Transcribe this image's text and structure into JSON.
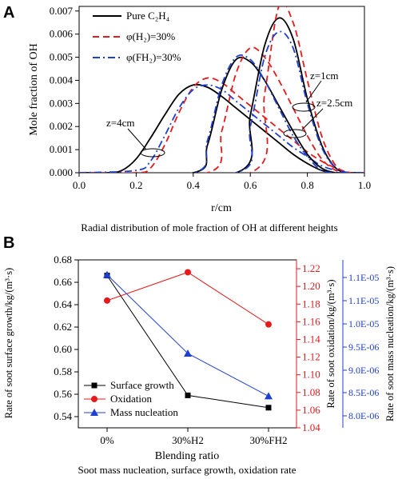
{
  "figure": {
    "panel_a": {
      "letter": "A",
      "caption": "Radial distribution of mole fraction of OH at different heights",
      "annotations": {
        "z1": "z=1cm",
        "z25": "z=2.5cm",
        "z4": "z=4cm"
      }
    },
    "panel_b": {
      "letter": "B",
      "caption": "Soot mass nucleation, surface growth, oxidation rate"
    }
  },
  "chart_data": [
    {
      "type": "line",
      "xlabel": "r/cm",
      "ylabel": "Mole fraction of OH",
      "xlim": [
        0.0,
        1.0
      ],
      "ylim": [
        0.0,
        0.0072
      ],
      "xticks": [
        "0.0",
        "0.2",
        "0.4",
        "0.6",
        "0.8",
        "1.0"
      ],
      "yticks": [
        "0.000",
        "0.001",
        "0.002",
        "0.003",
        "0.004",
        "0.005",
        "0.006",
        "0.007"
      ],
      "legend_position": "top-left",
      "legend_labels": [
        "Pure C₂H₄",
        "φ(H₂)=30%",
        "φ(FH₂)=30%"
      ],
      "series": [
        {
          "name": "Pure C2H4",
          "color": "#000000",
          "style": "solid",
          "height": "z=4cm",
          "x": [
            0.0,
            0.1,
            0.15,
            0.2,
            0.25,
            0.3,
            0.35,
            0.4,
            0.45,
            0.5,
            0.55,
            0.6,
            0.65,
            0.7,
            0.75,
            0.8,
            0.85,
            0.9,
            0.95,
            1.0
          ],
          "y": [
            0.0,
            0.0,
            0.0001,
            0.0006,
            0.0015,
            0.0025,
            0.0034,
            0.0038,
            0.0037,
            0.0033,
            0.0028,
            0.0023,
            0.0018,
            0.0013,
            0.0008,
            0.0004,
            0.0001,
            0.0,
            0.0,
            0.0
          ]
        },
        {
          "name": "φ(H2)=30%",
          "color": "#e41a1c",
          "style": "dashed",
          "height": "z=4cm",
          "x": [
            0.0,
            0.2,
            0.25,
            0.3,
            0.35,
            0.4,
            0.45,
            0.5,
            0.55,
            0.6,
            0.65,
            0.7,
            0.75,
            0.8,
            0.85,
            0.9,
            0.95,
            1.0
          ],
          "y": [
            0.0,
            0.0,
            0.0002,
            0.0012,
            0.0026,
            0.0037,
            0.0041,
            0.0039,
            0.0034,
            0.0029,
            0.0024,
            0.0019,
            0.0014,
            0.0009,
            0.0005,
            0.0002,
            0.0,
            0.0
          ]
        },
        {
          "name": "φ(FH2)=30%",
          "color": "#1f3fd1",
          "style": "dashdot",
          "height": "z=4cm",
          "x": [
            0.0,
            0.2,
            0.25,
            0.3,
            0.35,
            0.4,
            0.45,
            0.5,
            0.55,
            0.6,
            0.65,
            0.7,
            0.75,
            0.8,
            0.85,
            0.9,
            0.95,
            1.0
          ],
          "y": [
            0.0,
            0.0001,
            0.0005,
            0.0016,
            0.0028,
            0.0036,
            0.0038,
            0.0036,
            0.0031,
            0.0026,
            0.0021,
            0.0016,
            0.0011,
            0.0007,
            0.0003,
            0.0001,
            0.0,
            0.0
          ]
        },
        {
          "name": "Pure C2H4",
          "color": "#000000",
          "style": "solid",
          "height": "z=2.5cm",
          "x": [
            0.0,
            0.4,
            0.45,
            0.5,
            0.55,
            0.6,
            0.65,
            0.7,
            0.75,
            0.8,
            0.85,
            0.9,
            0.95,
            1.0
          ],
          "y": [
            0.0,
            0.0,
            0.0012,
            0.0036,
            0.0049,
            0.0048,
            0.004,
            0.0029,
            0.0018,
            0.0008,
            0.0002,
            0.0,
            0.0,
            0.0
          ]
        },
        {
          "name": "φ(H2)=30%",
          "color": "#e41a1c",
          "style": "dashed",
          "height": "z=2.5cm",
          "x": [
            0.0,
            0.45,
            0.5,
            0.55,
            0.6,
            0.65,
            0.7,
            0.75,
            0.8,
            0.85,
            0.9,
            0.95,
            1.0
          ],
          "y": [
            0.0,
            0.0,
            0.0018,
            0.0043,
            0.0054,
            0.005,
            0.004,
            0.0028,
            0.0016,
            0.0006,
            0.0001,
            0.0,
            0.0
          ]
        },
        {
          "name": "φ(FH2)=30%",
          "color": "#1f3fd1",
          "style": "dashdot",
          "height": "z=2.5cm",
          "x": [
            0.0,
            0.4,
            0.45,
            0.5,
            0.55,
            0.6,
            0.65,
            0.7,
            0.75,
            0.8,
            0.85,
            0.9,
            0.95,
            1.0
          ],
          "y": [
            0.0,
            0.0,
            0.0014,
            0.0038,
            0.005,
            0.0049,
            0.004,
            0.0028,
            0.0016,
            0.0007,
            0.0001,
            0.0,
            0.0,
            0.0
          ]
        },
        {
          "name": "Pure C2H4",
          "color": "#000000",
          "style": "solid",
          "height": "z=1cm",
          "x": [
            0.0,
            0.55,
            0.6,
            0.65,
            0.7,
            0.75,
            0.8,
            0.85,
            0.9,
            0.95,
            1.0
          ],
          "y": [
            0.0,
            0.0,
            0.0025,
            0.0055,
            0.0067,
            0.0058,
            0.0032,
            0.0012,
            0.0002,
            0.0,
            0.0
          ]
        },
        {
          "name": "φ(H2)=30%",
          "color": "#e41a1c",
          "style": "dashed",
          "height": "z=1cm",
          "x": [
            0.0,
            0.6,
            0.65,
            0.7,
            0.75,
            0.8,
            0.85,
            0.9,
            0.95,
            1.0
          ],
          "y": [
            0.0,
            0.0,
            0.0034,
            0.0072,
            0.0065,
            0.004,
            0.0016,
            0.0003,
            0.0,
            0.0
          ]
        },
        {
          "name": "φ(FH2)=30%",
          "color": "#1f3fd1",
          "style": "dashdot",
          "height": "z=1cm",
          "x": [
            0.0,
            0.55,
            0.6,
            0.65,
            0.7,
            0.75,
            0.8,
            0.85,
            0.9,
            0.95,
            1.0
          ],
          "y": [
            0.0,
            0.0,
            0.002,
            0.005,
            0.0061,
            0.0054,
            0.003,
            0.0011,
            0.0002,
            0.0,
            0.0
          ]
        }
      ]
    },
    {
      "type": "line",
      "xlabel": "Blending ratio",
      "categories": [
        "0%",
        "30%H2",
        "30%FH2"
      ],
      "y_left": {
        "label": "Rate of soot surface growth/kg/(m³·s)",
        "lim": [
          0.53,
          0.68
        ],
        "ticks": [
          "0.54",
          "0.56",
          "0.58",
          "0.60",
          "0.62",
          "0.64",
          "0.66",
          "0.68"
        ]
      },
      "y_right1": {
        "label": "Rate of soot oxidation/kg/(m³·s)",
        "lim": [
          1.04,
          1.23
        ],
        "color": "#e41a1c",
        "ticks": [
          "1.04",
          "1.06",
          "1.08",
          "1.10",
          "1.12",
          "1.14",
          "1.16",
          "1.18",
          "1.20",
          "1.22"
        ]
      },
      "y_right2": {
        "label": "Rate of soot mass nucleation/kg/(m³·s)",
        "lim": [
          7.8e-06,
          1.13e-05
        ],
        "color": "#1f3fd1",
        "ticks": [
          "8.0E-06",
          "8.5E-06",
          "9.0E-06",
          "9.5E-06",
          "1.0E-05",
          "1.1E-05",
          "1.1E-05"
        ]
      },
      "legend_position": "bottom-left",
      "series": [
        {
          "name": "Surface growth",
          "color": "#000000",
          "marker": "square",
          "axis": "left",
          "values": [
            0.666,
            0.559,
            0.548
          ]
        },
        {
          "name": "Oxidation",
          "color": "#e41a1c",
          "marker": "circle",
          "axis": "right1",
          "values": [
            1.184,
            1.216,
            1.157
          ]
        },
        {
          "name": "Mass nucleation",
          "color": "#1f3fd1",
          "marker": "triangle",
          "axis": "right2",
          "values": [
            1.099e-05,
            9.35e-06,
            8.46e-06
          ]
        }
      ]
    }
  ]
}
